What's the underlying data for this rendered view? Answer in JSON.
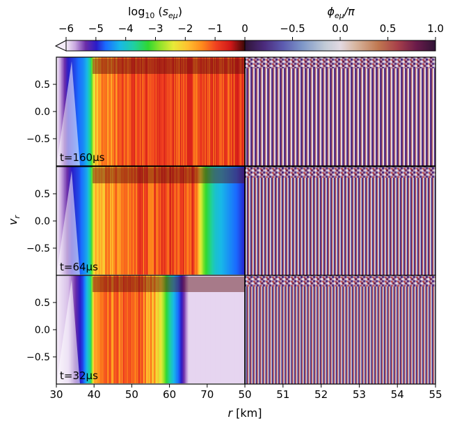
{
  "chart_data": {
    "type": "heatmap",
    "layout": "3 rows x 2 columns of heatmap panels with two colorbars on top",
    "colorbar_left": {
      "title": "log₁₀ (s_eμ)",
      "title_main": "log",
      "title_sub": "10",
      "title_var": "s",
      "title_var_sub": "eμ",
      "ticks": [
        "−6",
        "−5",
        "−4",
        "−3",
        "−2",
        "−1",
        "0"
      ],
      "range": [
        -6,
        0
      ],
      "extend": "min",
      "colormap": "gist_ncar-like (purple, blue, cyan, green, yellow, orange, red, dark red)"
    },
    "colorbar_right": {
      "title": "ϕ_eμ/π",
      "title_var": "ϕ",
      "title_var_sub": "eμ",
      "title_rest": "/π",
      "ticks": [
        "−0.5",
        "0.0",
        "0.5",
        "1.0"
      ],
      "range": [
        -1.0,
        1.0
      ],
      "colormap": "twilight_shifted (cyclic)"
    },
    "rows": [
      {
        "time_label": "t=160μs",
        "left_profile": [
          [
            30.0,
            -6.0
          ],
          [
            31.5,
            -5.5
          ],
          [
            33.0,
            -5.0
          ],
          [
            35.0,
            -4.8
          ],
          [
            37.0,
            -4.5
          ],
          [
            38.0,
            -4.2
          ],
          [
            39.0,
            -3.5
          ],
          [
            40.0,
            -2.0
          ],
          [
            42.0,
            -1.5
          ],
          [
            45.0,
            -1.5
          ],
          [
            48.0,
            -1.2
          ],
          [
            50.0,
            -1.0
          ]
        ]
      },
      {
        "time_label": "t=64μs",
        "left_profile": [
          [
            30.0,
            -6.0
          ],
          [
            32.0,
            -5.5
          ],
          [
            34.0,
            -5.0
          ],
          [
            36.0,
            -4.8
          ],
          [
            38.0,
            -4.3
          ],
          [
            39.0,
            -3.5
          ],
          [
            40.0,
            -2.0
          ],
          [
            50.0,
            -1.2
          ],
          [
            60.0,
            -1.0
          ],
          [
            66.0,
            -1.0
          ],
          [
            69.0,
            -3.0
          ],
          [
            72.0,
            -4.0
          ],
          [
            80.0,
            -5.0
          ]
        ]
      },
      {
        "time_label": "t=32μs",
        "left_profile": [
          [
            30.0,
            -6.0
          ],
          [
            33.0,
            -5.8
          ],
          [
            35.0,
            -5.3
          ],
          [
            37.0,
            -4.8
          ],
          [
            39.0,
            -3.5
          ],
          [
            40.0,
            -1.6
          ],
          [
            45.0,
            -1.4
          ],
          [
            52.0,
            -1.2
          ],
          [
            57.0,
            -2.0
          ],
          [
            59.0,
            -3.2
          ],
          [
            61.0,
            -4.2
          ],
          [
            63.0,
            -5.0
          ],
          [
            65.0,
            -5.9
          ],
          [
            80.0,
            -5.9
          ]
        ]
      }
    ],
    "left_xaxis": {
      "ticks": [
        "30",
        "40",
        "50",
        "60",
        "70",
        "80"
      ],
      "range": [
        30,
        80
      ]
    },
    "right_xaxis": {
      "ticks": [
        "50",
        "51",
        "52",
        "53",
        "54",
        "55"
      ],
      "range": [
        50,
        55
      ]
    },
    "yaxis": {
      "label": "v_r",
      "label_var": "v",
      "label_sub": "r",
      "ticks": [
        "0.5",
        "0.0",
        "−0.5"
      ],
      "range": [
        -1.0,
        1.0
      ]
    },
    "xlabel": "r [km]",
    "xlabel_var": "r",
    "xlabel_unit": "[km]"
  }
}
